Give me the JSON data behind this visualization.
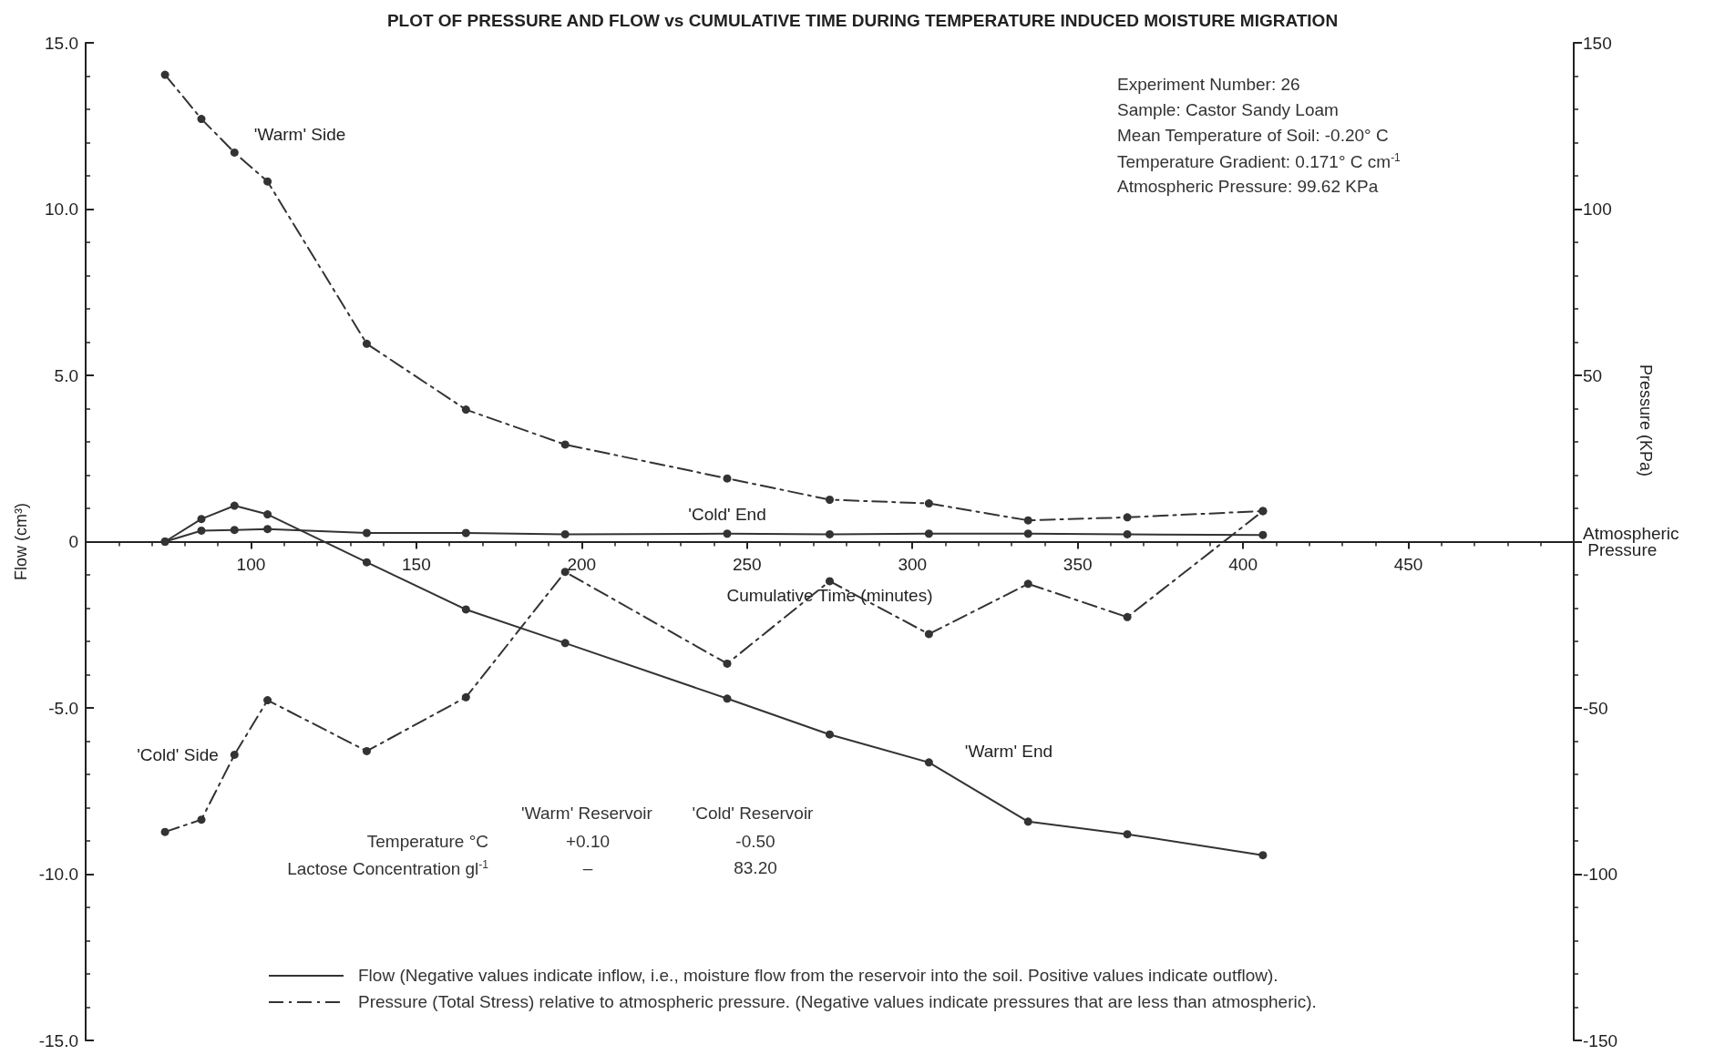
{
  "chart_data": {
    "type": "line",
    "title": "PLOT OF PRESSURE AND FLOW vs CUMULATIVE TIME DURING TEMPERATURE INDUCED MOISTURE MIGRATION",
    "xlabel": "Cumulative Time (minutes)",
    "ylabel": "Flow (cm³)",
    "y2label": "Pressure (KPa)",
    "x": [
      74,
      85,
      95,
      105,
      135,
      165,
      195,
      244,
      275,
      305,
      335,
      365,
      406
    ],
    "series": [
      {
        "name": "'Warm' End",
        "color": "#333333",
        "line_style": "solid",
        "values": [
          0,
          0.68,
          1.08,
          0.82,
          -0.62,
          -2.04,
          -3.05,
          -4.72,
          -5.8,
          -6.64,
          -8.42,
          -8.8,
          -9.43
        ]
      },
      {
        "name": "'Cold' End",
        "color": "#333333",
        "line_style": "solid",
        "values": [
          0,
          0.33,
          0.35,
          0.38,
          0.26,
          0.26,
          0.22,
          0.24,
          0.22,
          0.24,
          0.24,
          0.22,
          0.2
        ]
      },
      {
        "name": "'Warm' Side",
        "color": "#333333",
        "line_style": "dashed",
        "axis": "y2",
        "values": [
          140.4,
          127.1,
          117,
          108.3,
          59.5,
          39.7,
          29.2,
          19,
          12.6,
          11.5,
          6.4,
          7.3,
          9.2
        ]
      },
      {
        "name": "'Cold' Side",
        "color": "#333333",
        "line_style": "dashed",
        "axis": "y2",
        "values": [
          -87.3,
          -83.6,
          -64.1,
          -47.7,
          -63,
          -46.8,
          -9.1,
          -36.7,
          -11.9,
          -27.8,
          -12.7,
          -22.7,
          9.2
        ]
      }
    ],
    "xlim": [
      50,
      500
    ],
    "xticks": [
      {
        "value": 50,
        "label": null
      },
      100,
      150,
      200,
      250,
      300,
      350,
      400,
      450,
      {
        "value": 500,
        "label": null
      }
    ],
    "ylim": [
      -15,
      15
    ],
    "yticks": [
      {
        "value": -15,
        "label": "-15.0"
      },
      {
        "value": -10,
        "label": "-10.0"
      },
      {
        "value": -5,
        "label": "-5.0"
      },
      0,
      {
        "value": 5,
        "label": "5.0"
      },
      {
        "value": 10,
        "label": "10.0"
      },
      {
        "value": 15,
        "label": "15.0"
      }
    ],
    "y2lim": [
      -150,
      150
    ],
    "y2ticks": [
      -150,
      -100,
      -50,
      {
        "value": 0,
        "label": "Atmospheric Pressure"
      },
      50,
      100,
      150
    ],
    "marker": "circle",
    "grid": false,
    "annotations": [
      "Experiment Number: 26",
      "Sample: Castor Sandy Loam",
      "Mean Temperature of Soil: -0.20° C",
      "Temperature Gradient: 0.171° C cm$^{-1}$",
      "Atmospheric Pressure: 99.62 KPa",
      "'Warm' Reservoir",
      "'Cold' Reservoir",
      "Temperature °C",
      "+0.10",
      "-0.50",
      "Lactose Concentration gl$^{-1}$",
      "–",
      "83.20",
      "Flow  (Negative values indicate inflow, i.e., moisture flow from the reservoir into the soil. Positive values indicate outflow).",
      "Pressure  (Total Stress) relative to atmospheric pressure. (Negative values indicate pressures that are less than atmospheric)."
    ]
  }
}
